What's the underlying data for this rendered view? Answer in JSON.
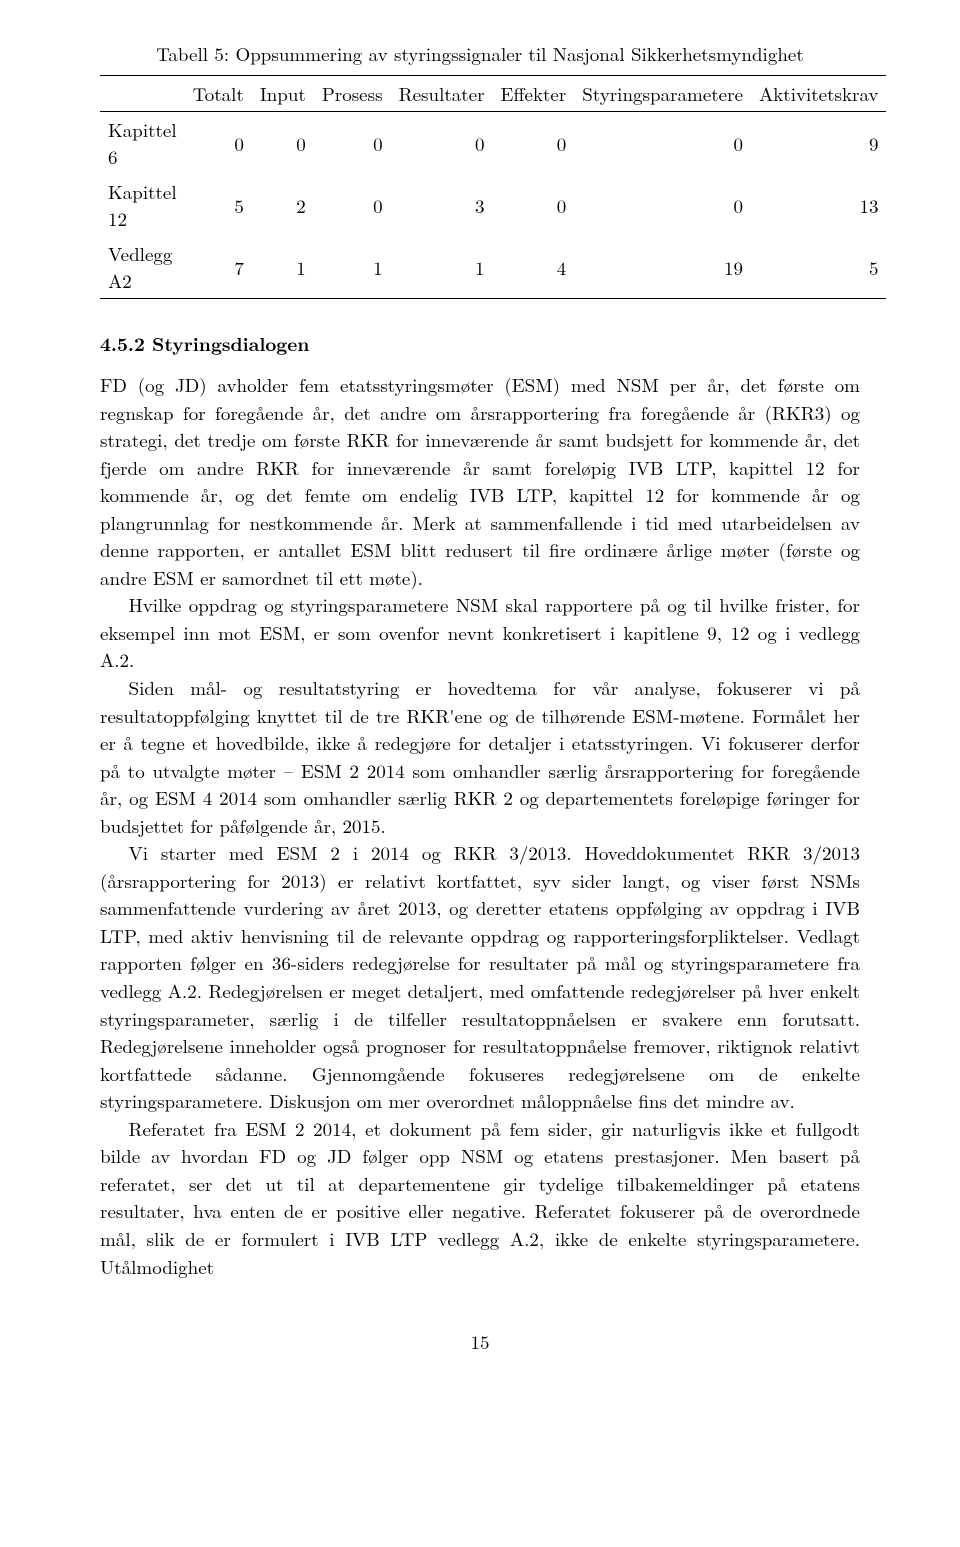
{
  "table": {
    "caption": "Tabell 5: Oppsummering av styringssignaler til Nasjonal Sikkerhetsmyndighet",
    "columns": [
      "",
      "Totalt",
      "Input",
      "Prosess",
      "Resultater",
      "Effekter",
      "Styringsparametere",
      "Aktivitetskrav"
    ],
    "rows": [
      [
        "Kapittel 6",
        "0",
        "0",
        "0",
        "0",
        "0",
        "0",
        "9"
      ],
      [
        "Kapittel 12",
        "5",
        "2",
        "0",
        "3",
        "0",
        "0",
        "13"
      ],
      [
        "Vedlegg A2",
        "7",
        "1",
        "1",
        "1",
        "4",
        "19",
        "5"
      ]
    ]
  },
  "heading": "4.5.2   Styringsdialogen",
  "paragraphs": [
    "FD (og JD) avholder fem etatsstyringsmøter (ESM) med NSM per år, det første om regnskap for foregående år, det andre om årsrapportering fra foregående år (RKR3) og strategi, det tredje om første RKR for inneværende år samt budsjett for kommende år, det fjerde om andre RKR for inneværende år samt foreløpig IVB LTP, kapittel 12 for kommende år, og det femte om endelig IVB LTP, kapittel 12 for kommende år og plangrunnlag for nestkommende år. Merk at sammenfallende i tid med utarbeidelsen av denne rapporten, er antallet ESM blitt redusert til fire ordinære årlige møter (første og andre ESM er samordnet til ett møte).",
    "Hvilke oppdrag og styringsparametere NSM skal rapportere på og til hvilke frister, for eksempel inn mot ESM, er som ovenfor nevnt konkretisert i kapitlene 9, 12 og i vedlegg A.2.",
    "Siden mål- og resultatstyring er hovedtema for vår analyse, fokuserer vi på resultatoppfølging knyttet til de tre RKR'ene og de tilhørende ESM-møtene. Formålet her er å tegne et hovedbilde, ikke å redegjøre for detaljer i etatsstyringen. Vi fokuserer derfor på to utvalgte møter – ESM 2 2014 som omhandler særlig årsrapportering for foregående år, og ESM 4 2014 som omhandler særlig RKR 2 og departementets foreløpige føringer for budsjettet for påfølgende år, 2015.",
    "Vi starter med ESM 2 i 2014 og RKR 3/2013. Hoveddokumentet RKR 3/2013 (årsrapportering for 2013) er relativt kortfattet, syv sider langt, og viser først NSMs sammenfattende vurdering av året 2013, og deretter etatens oppfølging av oppdrag i IVB LTP, med aktiv henvisning til de relevante oppdrag og rapporteringsforpliktelser. Vedlagt rapporten følger en 36-siders redegjørelse for resultater på mål og styringsparametere fra vedlegg A.2. Redegjørelsen er meget detaljert, med omfattende redegjørelser på hver enkelt styringsparameter, særlig i de tilfeller resultatoppnåelsen er svakere enn forutsatt. Redegjørelsene inneholder også prognoser for resultatoppnåelse fremover, riktignok relativt kortfattede sådanne. Gjennomgående fokuseres redegjørelsene om de enkelte styringsparametere. Diskusjon om mer overordnet måloppnåelse fins det mindre av.",
    "Referatet fra ESM 2 2014, et dokument på fem sider, gir naturligvis ikke et fullgodt bilde av hvordan FD og JD følger opp NSM og etatens prestasjoner. Men basert på referatet, ser det ut til at departementene gir tydelige tilbakemeldinger på etatens resultater, hva enten de er positive eller negative. Referatet fokuserer på de overordnede mål, slik de er formulert i IVB LTP vedlegg A.2, ikke de enkelte styringsparametere. Utålmodighet"
  ],
  "pageNumber": "15"
}
